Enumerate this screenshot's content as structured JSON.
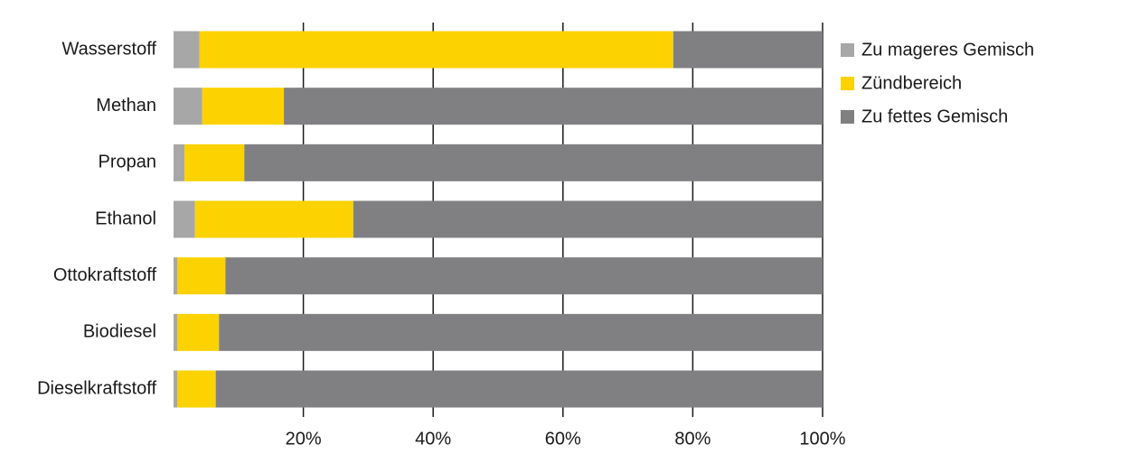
{
  "chart_data": {
    "type": "stacked-bar-horizontal",
    "categories": [
      "Wasserstoff",
      "Methan",
      "Propan",
      "Ethanol",
      "Ottokraftstoff",
      "Biodiesel",
      "Dieselkraftstoff"
    ],
    "series": [
      {
        "name": "Zu mageres Gemisch",
        "color": "#a7a7a8",
        "values": [
          4,
          4.4,
          1.7,
          3.3,
          0.6,
          0.6,
          0.6
        ]
      },
      {
        "name": "Zündbereich",
        "color": "#fcd200",
        "values": [
          73,
          12.6,
          9.2,
          24.4,
          7.4,
          6.4,
          5.9
        ]
      },
      {
        "name": "Zu fettes Gemisch",
        "color": "#808083",
        "values": [
          23,
          83,
          89.1,
          72.3,
          92,
          93,
          93.5
        ]
      }
    ],
    "xlim": [
      0,
      100
    ],
    "xticks": [
      {
        "value": 20,
        "label": "20%"
      },
      {
        "value": 40,
        "label": "40%"
      },
      {
        "value": 60,
        "label": "60%"
      },
      {
        "value": 80,
        "label": "80%"
      },
      {
        "value": 100,
        "label": "100%"
      }
    ],
    "grid": true,
    "legend": "right"
  }
}
